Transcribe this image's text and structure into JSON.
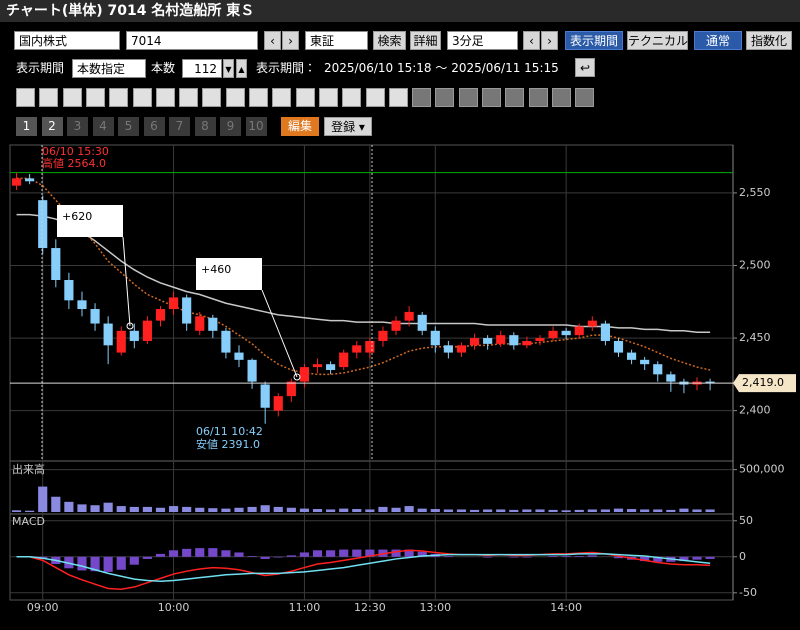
{
  "header": {
    "title": "チャート(単体) 7014 名村造船所 東Ｓ"
  },
  "toolbar": {
    "market": "国内株式",
    "code": "7014",
    "exchange": "東証",
    "search": "検索",
    "detail": "詳細",
    "interval": "3分足",
    "period_button": "表示期間",
    "technical": "テクニカル",
    "normal": "通常",
    "index_mode": "指数化"
  },
  "period_row": {
    "label": "表示期間",
    "mode": "本数指定",
    "count_label": "本数",
    "count": 112,
    "range_label": "表示期間：",
    "range": "2025/06/10 15:18 ～ 2025/06/11 15:15"
  },
  "tabs": [
    "1",
    "2",
    "3",
    "4",
    "5",
    "6",
    "7",
    "8",
    "9",
    "10"
  ],
  "edit": "編集",
  "register": "登録",
  "chart_data": {
    "type": "candlestick",
    "xlim": [
      -5,
      105.5
    ],
    "xticks": [
      {
        "value": 0,
        "label": "09:00"
      },
      {
        "value": 20,
        "label": "10:00"
      },
      {
        "value": 40,
        "label": "11:00"
      },
      {
        "value": 50,
        "label": "12:30"
      },
      {
        "value": 60,
        "label": "13:00"
      },
      {
        "value": 80,
        "label": "14:00"
      }
    ],
    "ylim": [
      2366,
      2583
    ],
    "yticks": [
      {
        "value": 2400,
        "label": "2,400"
      },
      {
        "value": 2450,
        "label": "2,450"
      },
      {
        "value": 2500,
        "label": "2,500"
      },
      {
        "value": 2550,
        "label": "2,550"
      }
    ],
    "x": [
      -4,
      -2,
      0,
      2,
      4,
      6,
      8,
      10,
      12,
      14,
      16,
      18,
      20,
      22,
      24,
      26,
      28,
      30,
      32,
      34,
      36,
      38,
      40,
      42,
      44,
      46,
      48,
      50,
      52,
      54,
      56,
      58,
      60,
      62,
      64,
      66,
      68,
      70,
      72,
      74,
      76,
      78,
      80,
      82,
      84,
      86,
      88,
      90,
      92,
      94,
      96,
      98,
      100,
      102
    ],
    "open": [
      2555,
      2560,
      2545,
      2512,
      2490,
      2476,
      2470,
      2460,
      2440,
      2455,
      2448,
      2462,
      2470,
      2478,
      2455,
      2464,
      2455,
      2440,
      2435,
      2418,
      2400,
      2410,
      2420,
      2430,
      2432,
      2430,
      2440,
      2440,
      2448,
      2455,
      2462,
      2466,
      2455,
      2445,
      2440,
      2445,
      2450,
      2446,
      2452,
      2445,
      2448,
      2450,
      2455,
      2452,
      2458,
      2460,
      2448,
      2440,
      2435,
      2432,
      2425,
      2420,
      2418,
      2420
    ],
    "high": [
      2564,
      2563,
      2548,
      2518,
      2495,
      2482,
      2474,
      2465,
      2458,
      2460,
      2465,
      2472,
      2482,
      2480,
      2468,
      2466,
      2457,
      2445,
      2436,
      2420,
      2412,
      2422,
      2432,
      2436,
      2434,
      2442,
      2448,
      2450,
      2458,
      2465,
      2472,
      2468,
      2458,
      2448,
      2447,
      2453,
      2452,
      2455,
      2454,
      2451,
      2452,
      2458,
      2457,
      2460,
      2465,
      2462,
      2450,
      2442,
      2437,
      2434,
      2427,
      2422,
      2423,
      2422
    ],
    "low": [
      2552,
      2556,
      2508,
      2485,
      2470,
      2465,
      2455,
      2432,
      2438,
      2443,
      2446,
      2458,
      2466,
      2455,
      2452,
      2450,
      2436,
      2430,
      2415,
      2391,
      2396,
      2406,
      2416,
      2426,
      2425,
      2428,
      2436,
      2436,
      2444,
      2452,
      2458,
      2452,
      2440,
      2436,
      2437,
      2442,
      2442,
      2444,
      2442,
      2443,
      2445,
      2448,
      2449,
      2450,
      2455,
      2445,
      2437,
      2432,
      2428,
      2420,
      2413,
      2412,
      2414,
      2414
    ],
    "close": [
      2560,
      2558,
      2512,
      2490,
      2476,
      2470,
      2460,
      2445,
      2455,
      2448,
      2462,
      2470,
      2478,
      2460,
      2465,
      2455,
      2440,
      2435,
      2420,
      2402,
      2410,
      2420,
      2430,
      2432,
      2428,
      2440,
      2445,
      2448,
      2455,
      2462,
      2468,
      2455,
      2445,
      2440,
      2445,
      2450,
      2446,
      2452,
      2445,
      2448,
      2450,
      2455,
      2452,
      2458,
      2462,
      2448,
      2440,
      2435,
      2432,
      2425,
      2420,
      2418,
      2420,
      2419
    ],
    "up_color": "#ff2020",
    "down_color": "#87cefa",
    "ma_short": {
      "color": "#d2691e",
      "values": [
        2560,
        2560,
        2555,
        2545,
        2535,
        2525,
        2515,
        2503,
        2495,
        2487,
        2480,
        2476,
        2472,
        2468,
        2466,
        2463,
        2458,
        2452,
        2446,
        2438,
        2432,
        2428,
        2426,
        2425,
        2425,
        2426,
        2428,
        2430,
        2433,
        2437,
        2441,
        2443,
        2444,
        2444,
        2444,
        2445,
        2445,
        2446,
        2446,
        2446,
        2447,
        2448,
        2449,
        2450,
        2452,
        2452,
        2450,
        2447,
        2444,
        2440,
        2436,
        2433,
        2430,
        2428
      ]
    },
    "ma_long": {
      "color": "#c8c8c8",
      "values": [
        2535,
        2535,
        2534,
        2532,
        2528,
        2523,
        2517,
        2510,
        2503,
        2497,
        2492,
        2488,
        2485,
        2482,
        2480,
        2477,
        2474,
        2472,
        2470,
        2468,
        2466,
        2465,
        2464,
        2463,
        2462,
        2462,
        2461,
        2461,
        2461,
        2460,
        2460,
        2460,
        2460,
        2460,
        2460,
        2460,
        2459,
        2459,
        2459,
        2459,
        2459,
        2459,
        2459,
        2458,
        2458,
        2458,
        2457,
        2457,
        2456,
        2456,
        2455,
        2455,
        2454,
        2454
      ]
    },
    "high_mark": {
      "value": 2564,
      "label": "高値 2564.0",
      "time": "06/10 15:30",
      "color": "#00b000"
    },
    "low_mark": {
      "value": 2391,
      "label": "安値 2391.0",
      "time": "06/11 10:42"
    },
    "last_price": {
      "value": 2419,
      "label": "2,419.0"
    },
    "annotations": [
      "+620",
      "+460"
    ],
    "volume": {
      "title": "出来高",
      "ylim": [
        0,
        590000
      ],
      "yticks": [
        {
          "value": 500000,
          "label": "500,000"
        }
      ],
      "color": "#8a8ae0",
      "values": [
        20000,
        15000,
        300000,
        180000,
        120000,
        90000,
        80000,
        110000,
        70000,
        60000,
        60000,
        50000,
        70000,
        60000,
        50000,
        45000,
        40000,
        50000,
        60000,
        80000,
        60000,
        50000,
        40000,
        35000,
        30000,
        40000,
        35000,
        30000,
        60000,
        50000,
        70000,
        40000,
        35000,
        30000,
        30000,
        25000,
        30000,
        30000,
        25000,
        30000,
        30000,
        25000,
        20000,
        25000,
        30000,
        30000,
        40000,
        35000,
        30000,
        30000,
        25000,
        40000,
        30000,
        30000
      ]
    },
    "macd": {
      "title": "MACD",
      "ylim": [
        -60,
        58
      ],
      "yticks": [
        -50,
        0,
        50
      ],
      "macd": {
        "color": "#ff2020",
        "values": [
          0,
          0,
          -5,
          -15,
          -25,
          -32,
          -38,
          -44,
          -45,
          -42,
          -36,
          -30,
          -24,
          -20,
          -17,
          -15,
          -16,
          -18,
          -22,
          -26,
          -24,
          -20,
          -15,
          -10,
          -8,
          -5,
          -2,
          1,
          4,
          7,
          9,
          8,
          6,
          4,
          3,
          3,
          2,
          3,
          2,
          2,
          3,
          4,
          4,
          5,
          6,
          4,
          1,
          -2,
          -5,
          -8,
          -10,
          -11,
          -11,
          -12
        ]
      },
      "signal": {
        "color": "#70e0f0",
        "values": [
          0,
          0,
          -2,
          -5,
          -9,
          -13,
          -18,
          -23,
          -27,
          -31,
          -33,
          -34,
          -33,
          -31,
          -29,
          -27,
          -25,
          -24,
          -23,
          -23,
          -23,
          -22,
          -21,
          -19,
          -17,
          -15,
          -12,
          -9,
          -6,
          -3,
          -1,
          1,
          2,
          3,
          3,
          3,
          3,
          3,
          3,
          3,
          3,
          3,
          3,
          4,
          4,
          4,
          3,
          2,
          1,
          -1,
          -3,
          -5,
          -7,
          -9
        ]
      },
      "histogram": {
        "color": "#7448c8",
        "values": [
          0,
          0,
          -3,
          -10,
          -16,
          -19,
          -20,
          -21,
          -18,
          -11,
          -3,
          4,
          9,
          11,
          12,
          12,
          9,
          6,
          1,
          -3,
          -1,
          2,
          6,
          9,
          9,
          10,
          10,
          10,
          10,
          10,
          10,
          7,
          4,
          1,
          0,
          0,
          -1,
          0,
          -1,
          -1,
          0,
          1,
          1,
          1,
          2,
          0,
          -2,
          -4,
          -6,
          -7,
          -7,
          -6,
          -4,
          -3
        ]
      }
    }
  }
}
